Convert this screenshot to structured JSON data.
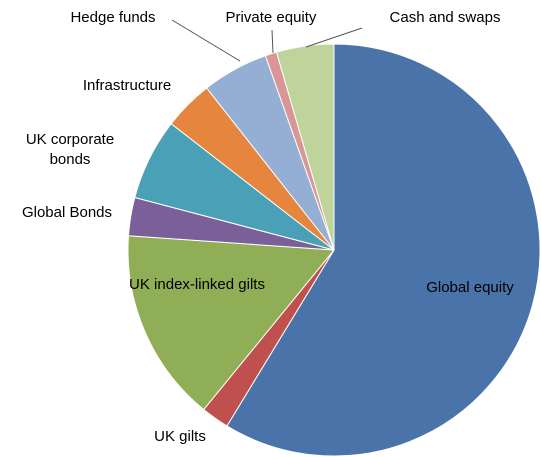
{
  "chart_data": {
    "type": "pie",
    "categories": [
      "Global equity",
      "UK gilts",
      "UK index-linked gilts",
      "Global Bonds",
      "UK corporate bonds",
      "Infrastructure",
      "Hedge funds",
      "Private equity",
      "Cash and swaps"
    ],
    "values": [
      58.7,
      2.2,
      15.2,
      3,
      6.4,
      3.9,
      5.2,
      0.9,
      4.5
    ],
    "colors": [
      "#4a74a9",
      "#c0504d",
      "#8fae55",
      "#7a5f98",
      "#4aa0b6",
      "#e5853e",
      "#94aed4",
      "#d99694",
      "#bfd49a"
    ]
  }
}
